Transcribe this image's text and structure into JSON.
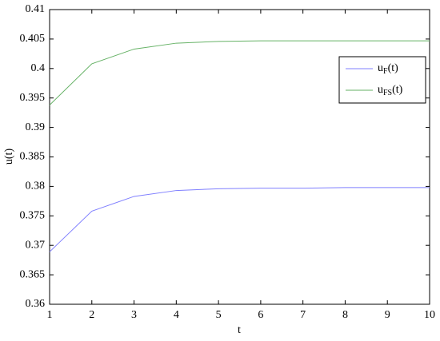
{
  "chart_data": {
    "type": "line",
    "x_label": "t",
    "y_label": "u(t)",
    "x": [
      1,
      2,
      3,
      4,
      5,
      6,
      7,
      8,
      9,
      10
    ],
    "series": [
      {
        "name": "uF(t)",
        "color": "#7f7fff",
        "values": [
          0.3689,
          0.3758,
          0.3783,
          0.3793,
          0.3796,
          0.3797,
          0.3797,
          0.3798,
          0.3798,
          0.3798
        ]
      },
      {
        "name": "uFS(t)",
        "color": "#66b266",
        "values": [
          0.3938,
          0.4008,
          0.4033,
          0.4043,
          0.4046,
          0.4047,
          0.4047,
          0.4047,
          0.4047,
          0.4047
        ]
      }
    ],
    "xlim": [
      1,
      10
    ],
    "xticks": [
      1,
      2,
      3,
      4,
      5,
      6,
      7,
      8,
      9,
      10
    ],
    "ylim": [
      0.36,
      0.41
    ],
    "yticks": [
      0.36,
      0.365,
      0.37,
      0.375,
      0.38,
      0.385,
      0.39,
      0.395,
      0.4,
      0.405,
      0.41
    ],
    "grid": false,
    "legend": "top-right"
  }
}
